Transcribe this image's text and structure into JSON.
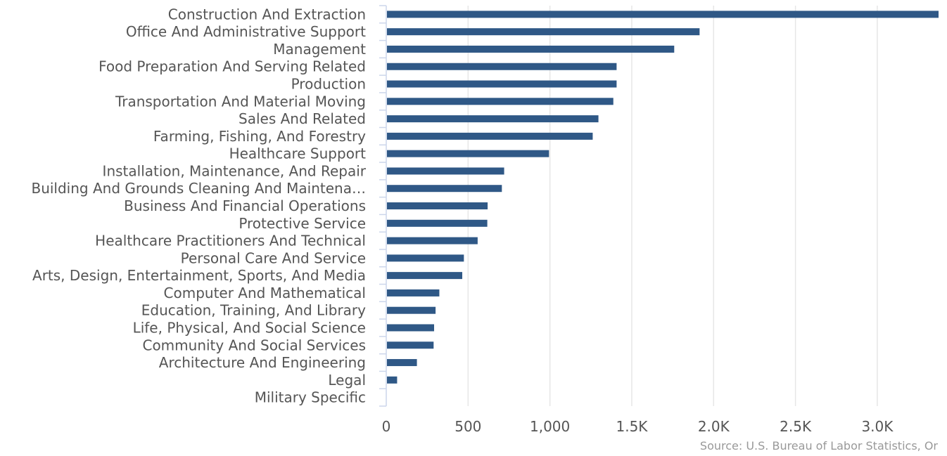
{
  "chart_data": {
    "type": "bar",
    "orientation": "horizontal",
    "categories": [
      "Construction And Extraction",
      "Office And Administrative Support",
      "Management",
      "Food Preparation And Serving Related",
      "Production",
      "Transportation And Material Moving",
      "Sales And Related",
      "Farming, Fishing, And Forestry",
      "Healthcare Support",
      "Installation, Maintenance, And Repair",
      "Building And Grounds Cleaning And Maintena…",
      "Business And Financial Operations",
      "Protective Service",
      "Healthcare Practitioners And Technical",
      "Personal Care And Service",
      "Arts, Design, Entertainment, Sports, And Media",
      "Computer And Mathematical",
      "Education, Training, And Library",
      "Life, Physical, And Social Science",
      "Community And Social Services",
      "Architecture And Engineering",
      "Legal",
      "Military Specific"
    ],
    "values": [
      3370,
      1910,
      1755,
      1403,
      1403,
      1383,
      1292,
      1257,
      990,
      716,
      702,
      615,
      613,
      554,
      470,
      460,
      320,
      297,
      288,
      285,
      183,
      62,
      0
    ],
    "x_ticks": [
      0,
      500,
      1000,
      1500,
      2000,
      2500,
      3000
    ],
    "x_tick_labels": [
      "0",
      "500",
      "1,000",
      "1.5K",
      "2.0K",
      "2.5K",
      "3.0K"
    ],
    "xlim": [
      0,
      3370
    ],
    "grid": true,
    "bar_color": "#2f5886",
    "title": "",
    "xlabel": "",
    "ylabel": ""
  },
  "source_note": "Source: U.S. Bureau of Labor Statistics, Or"
}
